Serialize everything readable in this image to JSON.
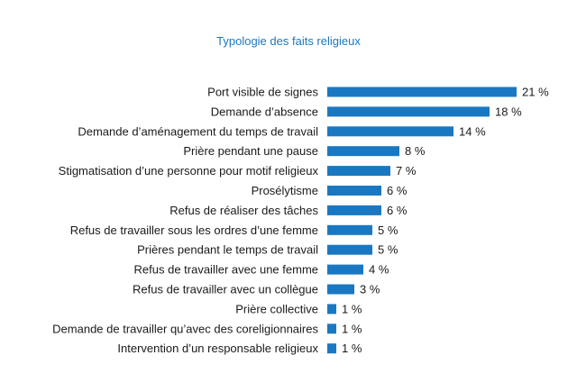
{
  "chart_data": {
    "type": "bar",
    "orientation": "horizontal",
    "title": "Typologie des faits religieux",
    "categories": [
      "Port visible de signes",
      "Demande d’absence",
      "Demande d’aménagement du temps de travail",
      "Prière pendant une pause",
      "Stigmatisation d’une personne pour motif religieux",
      "Prosélytisme",
      "Refus de réaliser des tâches",
      "Refus de travailler sous les ordres d’une femme",
      "Prières pendant le temps de travail",
      "Refus de travailler avec une femme",
      "Refus de travailler avec un collègue",
      "Prière collective",
      "Demande de travailler qu’avec des coreligionnaires",
      "Intervention d’un responsable religieux"
    ],
    "values": [
      21,
      18,
      14,
      8,
      7,
      6,
      6,
      5,
      5,
      4,
      3,
      1,
      1,
      1
    ],
    "value_labels": [
      "21 %",
      "18 %",
      "14 %",
      "8 %",
      "7 %",
      "6 %",
      "6 %",
      "5 %",
      "5 %",
      "4 %",
      "3 %",
      "1 %",
      "1 %",
      "1 %"
    ],
    "xlim": [
      0,
      21
    ],
    "grid": false,
    "bar_color": "#1a78c2"
  }
}
